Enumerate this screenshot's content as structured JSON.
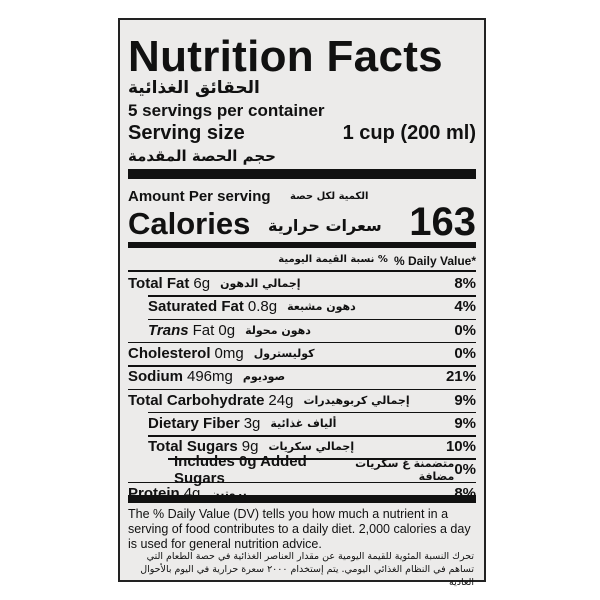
{
  "label": {
    "title": "Nutrition Facts",
    "title_ar": "الحقائق الغذائية",
    "servings": "5 servings per container",
    "serving_size_label": "Serving size",
    "serving_size_value": "1 cup (200 ml)",
    "serving_size_ar": "حجم الحصة المقدمة",
    "amount_per_serving": "Amount Per serving",
    "amount_per_serving_ar": "الكمية لكل حصة",
    "calories_label": "Calories",
    "calories_ar": "سعرات حرارية",
    "calories_value": "163",
    "dv_header": "% Daily Value*",
    "dv_header_ar": "% نسبة القيمة اليومية",
    "rows": [
      {
        "name": "Total Fat",
        "amount": "6g",
        "ar": "إجمالي الدهون",
        "dv": "8%"
      },
      {
        "name": "Saturated Fat",
        "amount": "0.8g",
        "ar": "دهون مشبعة",
        "dv": "4%"
      },
      {
        "name": "Trans",
        "amount": "Fat 0g",
        "ar": "دهون محولة",
        "dv": "0%"
      },
      {
        "name": "Cholesterol",
        "amount": "0mg",
        "ar": "كوليسترول",
        "dv": "0%"
      },
      {
        "name": "Sodium",
        "amount": "496mg",
        "ar": "صوديوم",
        "dv": "21%"
      },
      {
        "name": "Total Carbohydrate",
        "amount": "24g",
        "ar": "إجمالي كربوهيدرات",
        "dv": "9%"
      },
      {
        "name": "Dietary Fiber",
        "amount": "3g",
        "ar": "ألياف غذائية",
        "dv": "9%"
      },
      {
        "name": "Total Sugars",
        "amount": "9g",
        "ar": "إجمالي سكريات",
        "dv": "10%"
      },
      {
        "name": "Includes 0g Added Sugars",
        "ar": "متضمنة غ سكريات مضافة",
        "dv": "0%"
      },
      {
        "name": "Protein",
        "amount": "4g",
        "ar": "بروتين",
        "dv": "8%"
      }
    ],
    "footnote": "The % Daily Value (DV) tells you how much a nutrient in a serving of food contributes to a daily diet. 2,000 calories a day is used for general nutrition advice.",
    "footnote_ar": "تحرك النسبة المئوية للقيمة اليومية عن مقدار العناصر الغذائية في حصة الطعام التي تساهم في النظام الغذائي اليومي. يتم إستخدام ٢٠٠٠ سعرة حرارية في اليوم بالأحوال العادية"
  }
}
